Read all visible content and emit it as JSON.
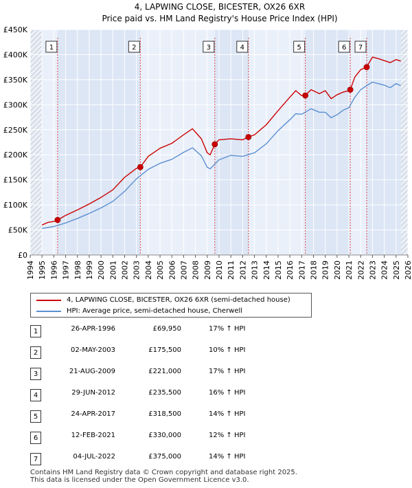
{
  "chart_data": {
    "type": "line",
    "title": "4, LAPWING CLOSE, BICESTER, OX26 6XR",
    "subtitle": "Price paid vs. HM Land Registry's House Price Index (HPI)",
    "xlim": [
      1994,
      2026
    ],
    "ylim": [
      0,
      450000
    ],
    "x_ticks": [
      "1994",
      "1995",
      "1996",
      "1997",
      "1998",
      "1999",
      "2000",
      "2001",
      "2002",
      "2003",
      "2004",
      "2005",
      "2006",
      "2007",
      "2008",
      "2009",
      "2010",
      "2011",
      "2012",
      "2013",
      "2014",
      "2015",
      "2016",
      "2017",
      "2018",
      "2019",
      "2020",
      "2021",
      "2022",
      "2023",
      "2024",
      "2025",
      "2026"
    ],
    "y_ticks": [
      {
        "value": 0,
        "label": "£0"
      },
      {
        "value": 50000,
        "label": "£50K"
      },
      {
        "value": 100000,
        "label": "£100K"
      },
      {
        "value": 150000,
        "label": "£150K"
      },
      {
        "value": 200000,
        "label": "£200K"
      },
      {
        "value": 250000,
        "label": "£250K"
      },
      {
        "value": 300000,
        "label": "£300K"
      },
      {
        "value": 350000,
        "label": "£350K"
      },
      {
        "value": 400000,
        "label": "£400K"
      },
      {
        "value": 450000,
        "label": "£450K"
      }
    ],
    "data_start_year": 1995,
    "series": [
      {
        "name": "4, LAPWING CLOSE, BICESTER, OX26 6XR (semi-detached house)",
        "color": "#cc0000",
        "x": [
          1995.0,
          1995.5,
          1996.0,
          1996.32,
          1997.0,
          1998.0,
          1999.0,
          2000.0,
          2001.0,
          2002.0,
          2003.0,
          2003.33,
          2004.0,
          2005.0,
          2006.0,
          2007.0,
          2007.75,
          2008.5,
          2009.0,
          2009.25,
          2009.64,
          2010.0,
          2011.0,
          2012.0,
          2012.49,
          2013.0,
          2014.0,
          2015.0,
          2016.0,
          2016.5,
          2017.0,
          2017.31,
          2017.8,
          2018.5,
          2019.0,
          2019.5,
          2020.0,
          2020.5,
          2021.0,
          2021.12,
          2021.5,
          2022.0,
          2022.5,
          2023.0,
          2023.5,
          2024.0,
          2024.5,
          2025.0,
          2025.4
        ],
        "y": [
          60000,
          65000,
          67000,
          69950,
          79000,
          90000,
          102000,
          115000,
          130000,
          155000,
          173000,
          175500,
          197000,
          213000,
          223000,
          240000,
          252000,
          232000,
          204000,
          200000,
          221000,
          230000,
          232000,
          230000,
          235500,
          240000,
          260000,
          288000,
          315000,
          328000,
          318000,
          318500,
          330000,
          322000,
          328000,
          312000,
          320000,
          325000,
          328000,
          330000,
          355000,
          370000,
          375000,
          395000,
          392000,
          388000,
          384000,
          390000,
          387000
        ]
      },
      {
        "name": "HPI: Average price, semi-detached house, Cherwell",
        "color": "#5b8fd1",
        "x": [
          1995.0,
          1996.0,
          1997.0,
          1998.0,
          1999.0,
          2000.0,
          2001.0,
          2002.0,
          2003.0,
          2004.0,
          2005.0,
          2006.0,
          2007.0,
          2007.75,
          2008.5,
          2009.0,
          2009.25,
          2010.0,
          2011.0,
          2012.0,
          2013.0,
          2014.0,
          2015.0,
          2016.0,
          2016.5,
          2017.0,
          2017.8,
          2018.5,
          2019.0,
          2019.5,
          2020.0,
          2020.5,
          2021.0,
          2021.5,
          2022.0,
          2022.5,
          2023.0,
          2023.5,
          2024.0,
          2024.5,
          2025.0,
          2025.4
        ],
        "y": [
          53000,
          57000,
          64000,
          73000,
          83000,
          94000,
          107000,
          127000,
          152000,
          171000,
          183000,
          191000,
          205000,
          214000,
          198000,
          175000,
          172000,
          190000,
          199000,
          197000,
          204000,
          222000,
          248000,
          270000,
          282000,
          281000,
          292000,
          285000,
          285000,
          274000,
          280000,
          289000,
          294000,
          315000,
          330000,
          338000,
          345000,
          342000,
          339000,
          334000,
          342000,
          338000
        ]
      }
    ],
    "sales": [
      {
        "num": "1",
        "year": 1996.32,
        "price": 69950
      },
      {
        "num": "2",
        "year": 2003.33,
        "price": 175500
      },
      {
        "num": "3",
        "year": 2009.64,
        "price": 221000
      },
      {
        "num": "4",
        "year": 2012.49,
        "price": 235500
      },
      {
        "num": "5",
        "year": 2017.31,
        "price": 318500
      },
      {
        "num": "6",
        "year": 2021.12,
        "price": 330000
      },
      {
        "num": "7",
        "year": 2022.51,
        "price": 375000
      }
    ]
  },
  "legend": {
    "property_label": "4, LAPWING CLOSE, BICESTER, OX26 6XR (semi-detached house)",
    "hpi_label": "HPI: Average price, semi-detached house, Cherwell"
  },
  "sales_table": [
    {
      "num": "1",
      "date": "26-APR-1996",
      "price": "£69,950",
      "hpi": "17% ↑ HPI"
    },
    {
      "num": "2",
      "date": "02-MAY-2003",
      "price": "£175,500",
      "hpi": "10% ↑ HPI"
    },
    {
      "num": "3",
      "date": "21-AUG-2009",
      "price": "£221,000",
      "hpi": "17% ↑ HPI"
    },
    {
      "num": "4",
      "date": "29-JUN-2012",
      "price": "£235,500",
      "hpi": "16% ↑ HPI"
    },
    {
      "num": "5",
      "date": "24-APR-2017",
      "price": "£318,500",
      "hpi": "14% ↑ HPI"
    },
    {
      "num": "6",
      "date": "12-FEB-2021",
      "price": "£330,000",
      "hpi": "12% ↑ HPI"
    },
    {
      "num": "7",
      "date": "04-JUL-2022",
      "price": "£375,000",
      "hpi": "14% ↑ HPI"
    }
  ],
  "footer": {
    "line1": "Contains HM Land Registry data © Crown copyright and database right 2025.",
    "line2": "This data is licensed under the Open Government Licence v3.0."
  },
  "colors": {
    "property": "#cc0000",
    "hpi": "#5b8fd1",
    "data_band": "#dce6f5",
    "grid": "#ffffff",
    "plot_bg": "#eaf0fa",
    "hatch": "#bbbbbb"
  }
}
